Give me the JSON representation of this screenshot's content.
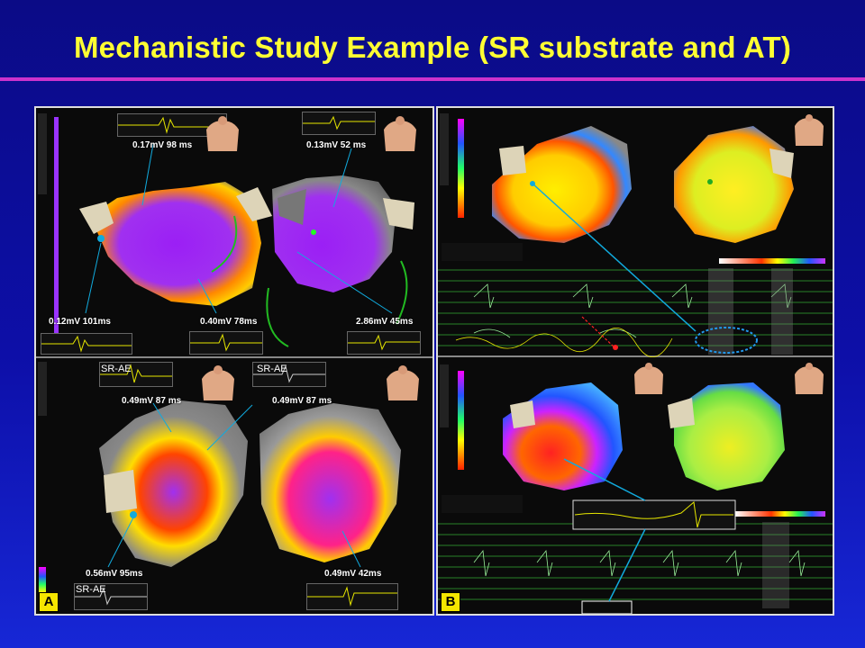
{
  "slide": {
    "title": "Mechanistic Study Example (SR substrate and AT)",
    "title_color": "#ffff33",
    "rule_color": "#cc33cc",
    "background": "#0d0fa8"
  },
  "panel_a": {
    "letter": "A",
    "top_labels": [
      "0.17mV 98 ms",
      "0.13mV 52 ms",
      "0.12mV 101ms",
      "0.40mV 78ms",
      "2.86mV 45ms"
    ],
    "bottom_tags": [
      "SR-AE",
      "SR-AE",
      "SR-AE"
    ],
    "bottom_labels": [
      "0.49mV 87 ms",
      "0.49mV 87 ms",
      "0.56mV 95ms",
      "0.49mV 42ms"
    ]
  },
  "panel_b": {
    "letter": "B"
  },
  "icons": [
    "torso-icon",
    "color-scale-bar",
    "toolbar-icons"
  ]
}
